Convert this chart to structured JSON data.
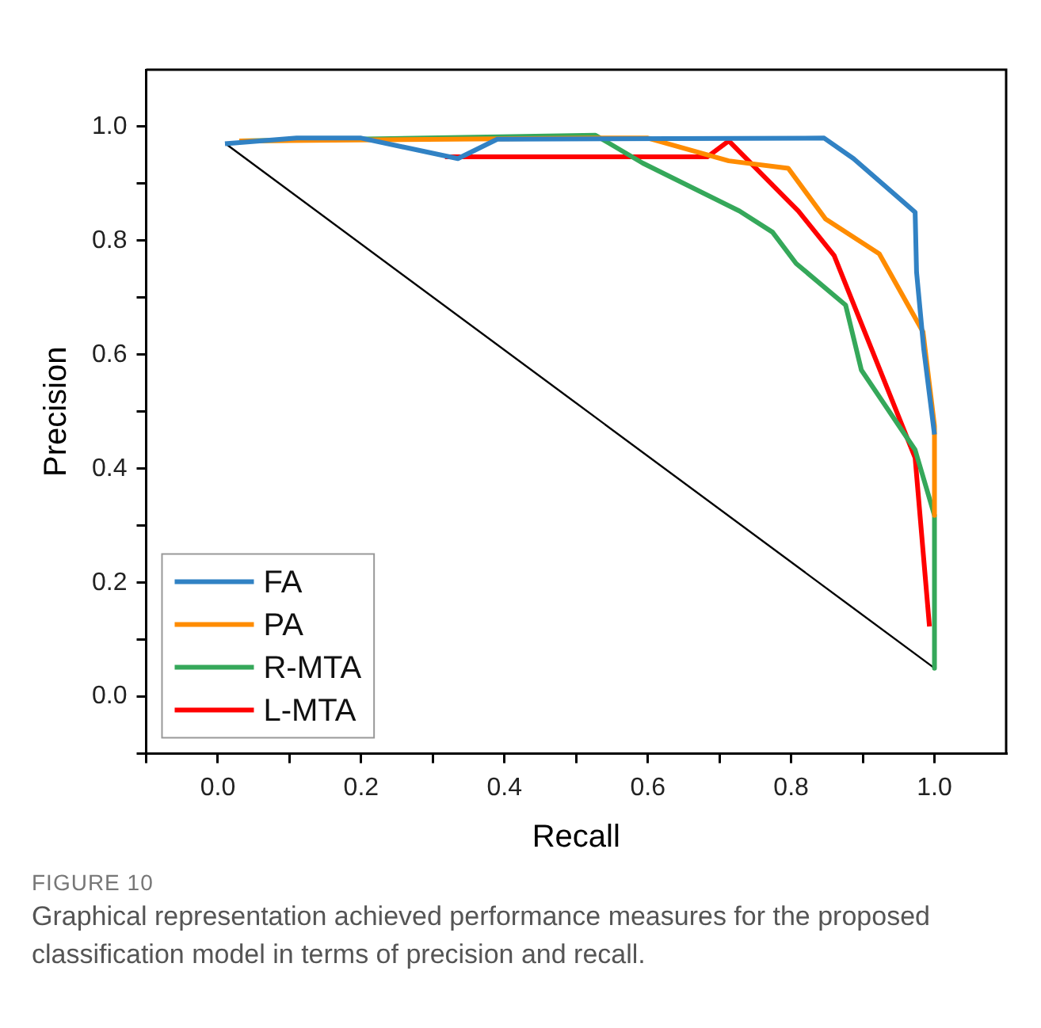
{
  "chart_data": {
    "type": "line",
    "xlabel": "Recall",
    "ylabel": "Precision",
    "xlim": [
      -0.1,
      1.1
    ],
    "ylim": [
      -0.1,
      1.1
    ],
    "xticks": [
      {
        "value": -0.1,
        "label": null
      },
      {
        "value": 0,
        "label": "0.0"
      },
      {
        "value": 0.1,
        "label": null
      },
      {
        "value": 0.2,
        "label": "0.2"
      },
      {
        "value": 0.3,
        "label": null
      },
      {
        "value": 0.4,
        "label": "0.4"
      },
      {
        "value": 0.5,
        "label": null
      },
      {
        "value": 0.6,
        "label": "0.6"
      },
      {
        "value": 0.7,
        "label": null
      },
      {
        "value": 0.8,
        "label": "0.8"
      },
      {
        "value": 0.9,
        "label": null
      },
      {
        "value": 1,
        "label": "1.0"
      }
    ],
    "yticks": [
      {
        "value": -0.1,
        "label": null
      },
      {
        "value": 0,
        "label": "0.0"
      },
      {
        "value": 0.1,
        "label": null
      },
      {
        "value": 0.2,
        "label": "0.2"
      },
      {
        "value": 0.3,
        "label": null
      },
      {
        "value": 0.4,
        "label": "0.4"
      },
      {
        "value": 0.5,
        "label": null
      },
      {
        "value": 0.6,
        "label": "0.6"
      },
      {
        "value": 0.7,
        "label": null
      },
      {
        "value": 0.8,
        "label": "0.8"
      },
      {
        "value": 0.9,
        "label": null
      },
      {
        "value": 1,
        "label": "1.0"
      }
    ],
    "grid": false,
    "legend": "bottom left",
    "marker": "none",
    "line_style": "solid",
    "series": [
      {
        "name": "FA",
        "color": "#3182c4",
        "x": [
          0.01,
          0.11,
          0.2,
          0.335,
          0.39,
          0.846,
          0.887,
          0.973,
          0.975,
          0.985,
          1.0
        ],
        "values": [
          0.97,
          0.98,
          0.98,
          0.944,
          0.978,
          0.98,
          0.944,
          0.85,
          0.745,
          0.61,
          0.46
        ]
      },
      {
        "name": "PA",
        "color": "#ff8c00",
        "x": [
          0.03,
          0.54,
          0.6,
          0.713,
          0.796,
          0.848,
          0.923,
          0.984,
          1.0,
          1.0
        ],
        "values": [
          0.975,
          0.98,
          0.98,
          0.94,
          0.927,
          0.838,
          0.777,
          0.64,
          0.475,
          0.318
        ]
      },
      {
        "name": "R-MTA",
        "color": "#35a85a",
        "x": [
          0.03,
          0.527,
          0.593,
          0.728,
          0.774,
          0.807,
          0.876,
          0.898,
          0.973,
          1.0,
          1.0
        ],
        "values": [
          0.975,
          0.985,
          0.936,
          0.852,
          0.815,
          0.76,
          0.687,
          0.573,
          0.433,
          0.318,
          0.05
        ]
      },
      {
        "name": "L-MTA",
        "color": "#ff0000",
        "x": [
          0.317,
          0.683,
          0.713,
          0.81,
          0.86,
          0.973,
          0.993
        ],
        "values": [
          0.947,
          0.947,
          0.975,
          0.852,
          0.774,
          0.419,
          0.123
        ]
      },
      {
        "color": "#000000",
        "x": [
          0.011,
          1.0
        ],
        "values": [
          0.97,
          0.05
        ]
      }
    ],
    "annotations": [
      "FIGURE 10",
      "Graphical representation achieved performance measures for the proposed classification model in terms of precision and recall."
    ]
  }
}
